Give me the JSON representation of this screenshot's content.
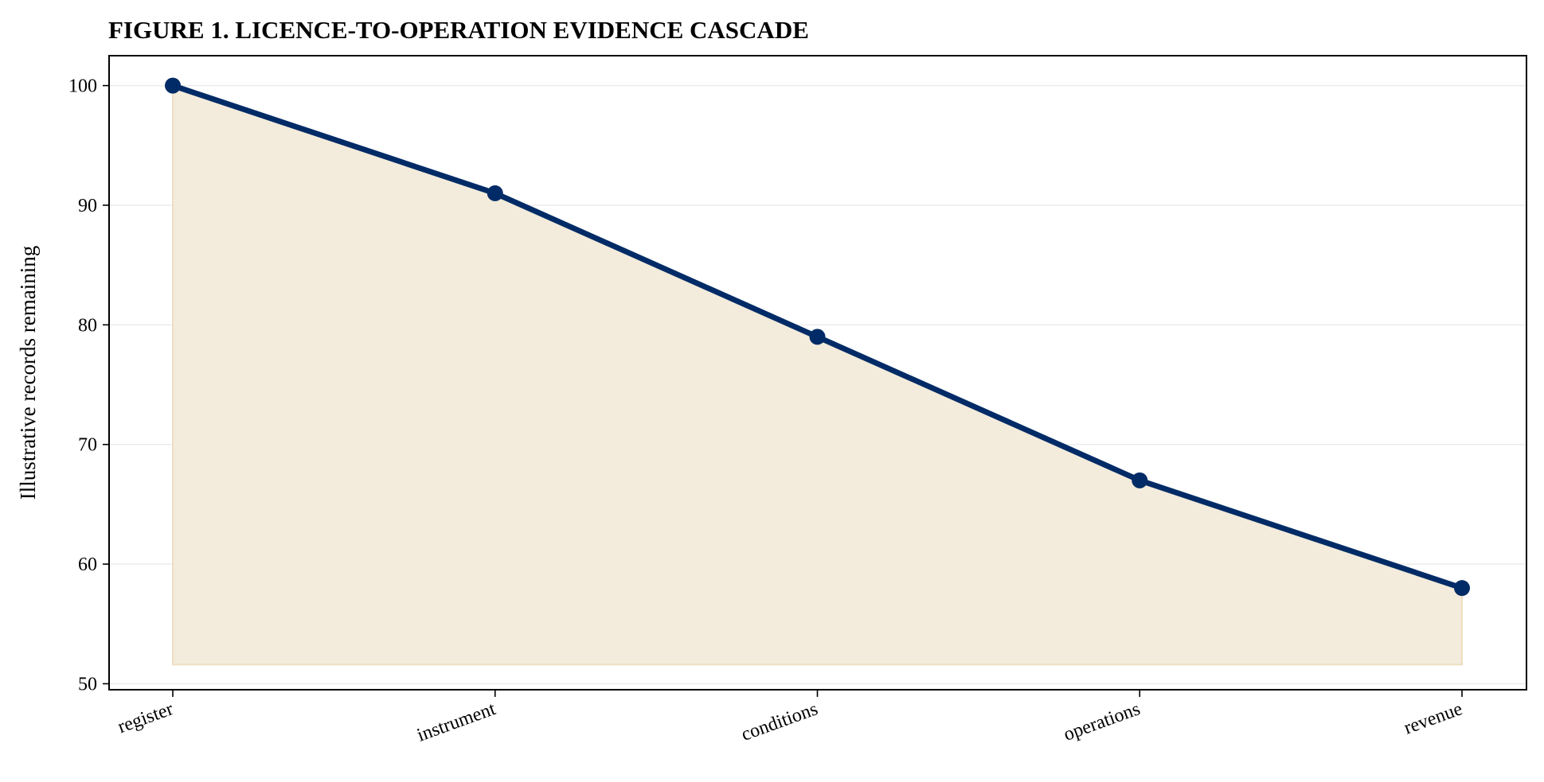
{
  "chart_data": {
    "type": "area",
    "title": "FIGURE 1. LICENCE-TO-OPERATION EVIDENCE CASCADE",
    "xlabel": "",
    "ylabel": "Illustrative records remaining",
    "categories": [
      "register",
      "instrument",
      "conditions",
      "operations",
      "revenue"
    ],
    "series": [
      {
        "values": [
          100,
          91,
          79,
          67,
          58
        ]
      }
    ],
    "fill_baseline": 51.6,
    "ylim": [
      49.5,
      102.5
    ],
    "yticks": [
      50,
      60,
      70,
      80,
      90,
      100
    ],
    "grid": "horizontal",
    "colors": {
      "line": "#002b66",
      "fill": "#f3ebdb",
      "fill_edge": "#efdfc0",
      "grid": "#ececec"
    }
  }
}
